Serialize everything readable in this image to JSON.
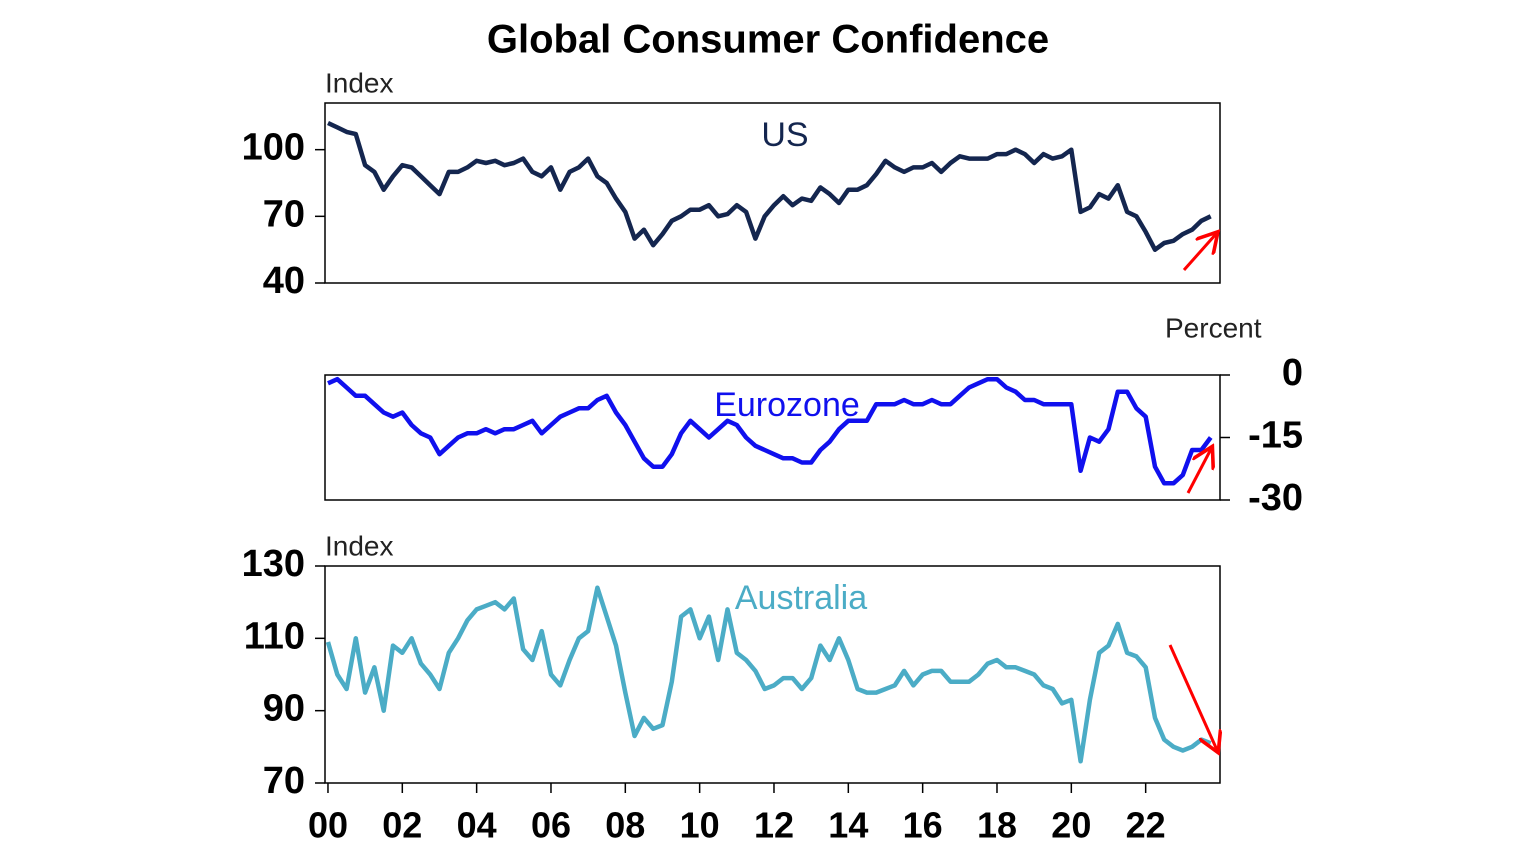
{
  "chart_data": [
    {
      "type": "line",
      "title": "Global Consumer Confidence",
      "y_label": "Index",
      "annotation": "US",
      "yaxis_position": "left",
      "xlim": [
        1999.92,
        2024.0
      ],
      "ylim": [
        40,
        121
      ],
      "yticks": [
        40,
        70,
        100
      ],
      "x": [
        2000,
        2000.25,
        2000.5,
        2000.75,
        2001,
        2001.25,
        2001.5,
        2001.75,
        2002,
        2002.25,
        2002.5,
        2002.75,
        2003,
        2003.25,
        2003.5,
        2003.75,
        2004,
        2004.25,
        2004.5,
        2004.75,
        2005,
        2005.25,
        2005.5,
        2005.75,
        2006,
        2006.25,
        2006.5,
        2006.75,
        2007,
        2007.25,
        2007.5,
        2007.75,
        2008,
        2008.25,
        2008.5,
        2008.75,
        2009,
        2009.25,
        2009.5,
        2009.75,
        2010,
        2010.25,
        2010.5,
        2010.75,
        2011,
        2011.25,
        2011.5,
        2011.75,
        2012,
        2012.25,
        2012.5,
        2012.75,
        2013,
        2013.25,
        2013.5,
        2013.75,
        2014,
        2014.25,
        2014.5,
        2014.75,
        2015,
        2015.25,
        2015.5,
        2015.75,
        2016,
        2016.25,
        2016.5,
        2016.75,
        2017,
        2017.25,
        2017.5,
        2017.75,
        2018,
        2018.25,
        2018.5,
        2018.75,
        2019,
        2019.25,
        2019.5,
        2019.75,
        2020,
        2020.25,
        2020.5,
        2020.75,
        2021,
        2021.25,
        2021.5,
        2021.75,
        2022,
        2022.25,
        2022.5,
        2022.75,
        2023,
        2023.25,
        2023.5,
        2023.75
      ],
      "series": [
        {
          "name": "US",
          "color": "#14264f",
          "values": [
            112,
            110,
            108,
            107,
            93,
            90,
            82,
            88,
            93,
            92,
            88,
            84,
            80,
            90,
            90,
            92,
            95,
            94,
            95,
            93,
            94,
            96,
            90,
            88,
            92,
            82,
            90,
            92,
            96,
            88,
            85,
            78,
            72,
            60,
            64,
            57,
            62,
            68,
            70,
            73,
            73,
            75,
            70,
            71,
            75,
            72,
            60,
            70,
            75,
            79,
            75,
            78,
            77,
            83,
            80,
            76,
            82,
            82,
            84,
            89,
            95,
            92,
            90,
            92,
            92,
            94,
            90,
            94,
            97,
            96,
            96,
            96,
            98,
            98,
            100,
            98,
            94,
            98,
            96,
            97,
            100,
            72,
            74,
            80,
            78,
            84,
            72,
            70,
            63,
            55,
            58,
            59,
            62,
            64,
            68,
            70
          ]
        }
      ]
    },
    {
      "type": "line",
      "y_label": "Percent",
      "annotation": "Eurozone",
      "yaxis_position": "right",
      "xlim": [
        1999.92,
        2024.0
      ],
      "ylim": [
        -30,
        0
      ],
      "yticks": [
        -30,
        -15,
        0
      ],
      "x": [
        2000,
        2000.25,
        2000.5,
        2000.75,
        2001,
        2001.25,
        2001.5,
        2001.75,
        2002,
        2002.25,
        2002.5,
        2002.75,
        2003,
        2003.25,
        2003.5,
        2003.75,
        2004,
        2004.25,
        2004.5,
        2004.75,
        2005,
        2005.25,
        2005.5,
        2005.75,
        2006,
        2006.25,
        2006.5,
        2006.75,
        2007,
        2007.25,
        2007.5,
        2007.75,
        2008,
        2008.25,
        2008.5,
        2008.75,
        2009,
        2009.25,
        2009.5,
        2009.75,
        2010,
        2010.25,
        2010.5,
        2010.75,
        2011,
        2011.25,
        2011.5,
        2011.75,
        2012,
        2012.25,
        2012.5,
        2012.75,
        2013,
        2013.25,
        2013.5,
        2013.75,
        2014,
        2014.25,
        2014.5,
        2014.75,
        2015,
        2015.25,
        2015.5,
        2015.75,
        2016,
        2016.25,
        2016.5,
        2016.75,
        2017,
        2017.25,
        2017.5,
        2017.75,
        2018,
        2018.25,
        2018.5,
        2018.75,
        2019,
        2019.25,
        2019.5,
        2019.75,
        2020,
        2020.25,
        2020.5,
        2020.75,
        2021,
        2021.25,
        2021.5,
        2021.75,
        2022,
        2022.25,
        2022.5,
        2022.75,
        2023,
        2023.25,
        2023.5,
        2023.75
      ],
      "series": [
        {
          "name": "Eurozone",
          "color": "#1010ee",
          "values": [
            -2,
            -1,
            -3,
            -5,
            -5,
            -7,
            -9,
            -10,
            -9,
            -12,
            -14,
            -15,
            -19,
            -17,
            -15,
            -14,
            -14,
            -13,
            -14,
            -13,
            -13,
            -12,
            -11,
            -14,
            -12,
            -10,
            -9,
            -8,
            -8,
            -6,
            -5,
            -9,
            -12,
            -16,
            -20,
            -22,
            -22,
            -19,
            -14,
            -11,
            -13,
            -15,
            -13,
            -11,
            -12,
            -15,
            -17,
            -18,
            -19,
            -20,
            -20,
            -21,
            -21,
            -18,
            -16,
            -13,
            -11,
            -11,
            -11,
            -7,
            -7,
            -7,
            -6,
            -7,
            -7,
            -6,
            -7,
            -7,
            -5,
            -3,
            -2,
            -1,
            -1,
            -3,
            -4,
            -6,
            -6,
            -7,
            -7,
            -7,
            -7,
            -23,
            -15,
            -16,
            -13,
            -4,
            -4,
            -8,
            -10,
            -22,
            -26,
            -26,
            -24,
            -18,
            -18,
            -15
          ]
        }
      ]
    },
    {
      "type": "line",
      "y_label": "Index",
      "annotation": "Australia",
      "yaxis_position": "left",
      "xlim": [
        1999.92,
        2024.0
      ],
      "ylim": [
        70,
        130
      ],
      "yticks": [
        70,
        90,
        110,
        130
      ],
      "xticks": [
        {
          "value": 2000,
          "label": "00"
        },
        {
          "value": 2002,
          "label": "02"
        },
        {
          "value": 2004,
          "label": "04"
        },
        {
          "value": 2006,
          "label": "06"
        },
        {
          "value": 2008,
          "label": "08"
        },
        {
          "value": 2010,
          "label": "10"
        },
        {
          "value": 2012,
          "label": "12"
        },
        {
          "value": 2014,
          "label": "14"
        },
        {
          "value": 2016,
          "label": "16"
        },
        {
          "value": 2018,
          "label": "18"
        },
        {
          "value": 2020,
          "label": "20"
        },
        {
          "value": 2022,
          "label": "22"
        }
      ],
      "x": [
        2000,
        2000.25,
        2000.5,
        2000.75,
        2001,
        2001.25,
        2001.5,
        2001.75,
        2002,
        2002.25,
        2002.5,
        2002.75,
        2003,
        2003.25,
        2003.5,
        2003.75,
        2004,
        2004.25,
        2004.5,
        2004.75,
        2005,
        2005.25,
        2005.5,
        2005.75,
        2006,
        2006.25,
        2006.5,
        2006.75,
        2007,
        2007.25,
        2007.5,
        2007.75,
        2008,
        2008.25,
        2008.5,
        2008.75,
        2009,
        2009.25,
        2009.5,
        2009.75,
        2010,
        2010.25,
        2010.5,
        2010.75,
        2011,
        2011.25,
        2011.5,
        2011.75,
        2012,
        2012.25,
        2012.5,
        2012.75,
        2013,
        2013.25,
        2013.5,
        2013.75,
        2014,
        2014.25,
        2014.5,
        2014.75,
        2015,
        2015.25,
        2015.5,
        2015.75,
        2016,
        2016.25,
        2016.5,
        2016.75,
        2017,
        2017.25,
        2017.5,
        2017.75,
        2018,
        2018.25,
        2018.5,
        2018.75,
        2019,
        2019.25,
        2019.5,
        2019.75,
        2020,
        2020.25,
        2020.5,
        2020.75,
        2021,
        2021.25,
        2021.5,
        2021.75,
        2022,
        2022.25,
        2022.5,
        2022.75,
        2023,
        2023.25,
        2023.5,
        2023.75
      ],
      "series": [
        {
          "name": "Australia",
          "color": "#4bacc6",
          "values": [
            109,
            100,
            96,
            110,
            95,
            102,
            90,
            108,
            106,
            110,
            103,
            100,
            96,
            106,
            110,
            115,
            118,
            119,
            120,
            118,
            121,
            107,
            104,
            112,
            100,
            97,
            104,
            110,
            112,
            124,
            116,
            108,
            95,
            83,
            88,
            85,
            86,
            98,
            116,
            118,
            110,
            116,
            104,
            118,
            106,
            104,
            101,
            96,
            97,
            99,
            99,
            96,
            99,
            108,
            104,
            110,
            104,
            96,
            95,
            95,
            96,
            97,
            101,
            97,
            100,
            101,
            101,
            98,
            98,
            98,
            100,
            103,
            104,
            102,
            102,
            101,
            100,
            97,
            96,
            92,
            93,
            76,
            93,
            106,
            108,
            114,
            106,
            105,
            102,
            88,
            82,
            80,
            79,
            80,
            82,
            81
          ]
        }
      ]
    }
  ]
}
